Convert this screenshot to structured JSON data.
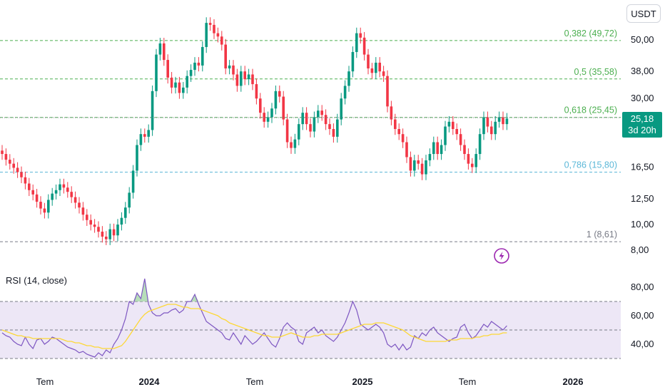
{
  "currency": "USDT",
  "price_tag": {
    "price": "25,18",
    "countdown": "3d 20h",
    "color": "#089981"
  },
  "colors": {
    "up": "#089981",
    "down": "#f23645",
    "fib_green": "#4caf50",
    "fib_blue": "#5cb8d8",
    "fib_gray": "#787b86",
    "rsi_line": "#7e57c2",
    "rsi_ma": "#fdd835",
    "rsi_band": "#ede7f6"
  },
  "icons": [
    "lightning-icon"
  ],
  "chart_data": [
    {
      "type": "candlestick",
      "y_scale": "log",
      "ylim": [
        7.6,
        70
      ],
      "y_ticks": [
        "50,00",
        "38,00",
        "30,00",
        "16,50",
        "12,50",
        "10,00",
        "8,00"
      ],
      "y_tick_values": [
        50,
        38,
        30,
        16.5,
        12.5,
        10,
        8
      ],
      "x_ticks": [
        "Tem",
        "2024",
        "Tem",
        "2025",
        "Tem",
        "2026"
      ],
      "fib_levels": [
        {
          "label": "0,382 (49,72)",
          "value": 49.72
        },
        {
          "label": "0,5 (35,58)",
          "value": 35.58
        },
        {
          "label": "0,618 (25,45)",
          "value": 25.45
        },
        {
          "label": "0,786 (15,80)",
          "value": 15.8
        },
        {
          "label": "1 (8,61)",
          "value": 8.61
        }
      ],
      "last_price": 25.18,
      "closes": [
        18.5,
        17.6,
        17.0,
        16.4,
        15.8,
        15.1,
        14.3,
        13.5,
        13.0,
        12.2,
        11.5,
        11.1,
        12.4,
        13.1,
        13.5,
        14.2,
        13.8,
        13.3,
        12.7,
        12.1,
        11.6,
        10.9,
        10.4,
        10.0,
        9.8,
        9.4,
        9.0,
        8.8,
        9.6,
        9.1,
        10.0,
        10.6,
        11.6,
        13.2,
        16.0,
        20.0,
        22.0,
        21.5,
        22.8,
        32.0,
        44.0,
        48.5,
        42.0,
        36.0,
        33.0,
        34.5,
        31.5,
        33.0,
        36.5,
        38.5,
        41.0,
        40.0,
        47.0,
        58.0,
        57.0,
        53.0,
        51.5,
        48.0,
        39.0,
        40.0,
        37.0,
        33.5,
        38.0,
        35.5,
        37.0,
        34.0,
        30.0,
        26.5,
        24.5,
        25.5,
        27.5,
        32.0,
        30.5,
        25.0,
        20.5,
        19.5,
        21.0,
        24.0,
        26.5,
        24.0,
        22.5,
        25.5,
        27.0,
        26.0,
        24.0,
        23.0,
        21.5,
        25.0,
        30.0,
        33.5,
        38.0,
        45.0,
        53.0,
        51.0,
        44.0,
        39.0,
        37.5,
        41.0,
        38.0,
        36.5,
        28.0,
        25.0,
        23.0,
        22.0,
        20.5,
        18.0,
        16.0,
        17.5,
        17.0,
        15.5,
        17.5,
        18.5,
        20.5,
        18.5,
        20.0,
        23.5,
        24.5,
        23.0,
        22.0,
        20.0,
        18.5,
        17.0,
        16.5,
        18.5,
        22.0,
        25.5,
        23.5,
        22.0,
        24.5,
        25.5,
        24.0,
        25.18
      ]
    },
    {
      "type": "line",
      "title": "RSI (14, close)",
      "ylim": [
        29,
        86
      ],
      "y_ticks": [
        "80,00",
        "60,00",
        "40,00"
      ],
      "y_tick_values": [
        80,
        60,
        40
      ],
      "band": [
        30,
        70
      ],
      "midline": 50,
      "series": [
        {
          "values": [
            48,
            46,
            45,
            42,
            40,
            39,
            45,
            40,
            37,
            43,
            44,
            40,
            42,
            45,
            44,
            42,
            40,
            38,
            37,
            36,
            34,
            35,
            33,
            32,
            31,
            34,
            32,
            36,
            34,
            40,
            44,
            50,
            58,
            70,
            68,
            76,
            72,
            86,
            68,
            62,
            60,
            60,
            62,
            62,
            64,
            65,
            62,
            64,
            70,
            70,
            75,
            68,
            62,
            56,
            54,
            52,
            50,
            48,
            44,
            43,
            48,
            44,
            40,
            46,
            43,
            40,
            42,
            45,
            48,
            44,
            40,
            38,
            44,
            52,
            55,
            52,
            50,
            42,
            40,
            48,
            50,
            52,
            48,
            50,
            46,
            44,
            42,
            45,
            50,
            55,
            62,
            70,
            64,
            54,
            52,
            50,
            52,
            54,
            52,
            48,
            40,
            38,
            40,
            36,
            40,
            36,
            38,
            46,
            44,
            48,
            46,
            50,
            52,
            48,
            46,
            44,
            42,
            44,
            45,
            52,
            54,
            48,
            44,
            46,
            50,
            54,
            52,
            56,
            54,
            52,
            50,
            53
          ]
        },
        {
          "values": [
            50,
            49,
            48,
            47,
            46,
            46,
            45,
            45,
            44,
            44,
            44,
            44,
            44,
            44,
            44,
            44,
            43,
            42,
            42,
            41,
            41,
            40,
            39,
            39,
            38,
            38,
            37,
            37,
            37,
            37,
            38,
            39,
            42,
            46,
            50,
            54,
            58,
            61,
            63,
            64,
            65,
            66,
            67,
            68,
            68,
            68,
            67,
            66,
            66,
            65,
            65,
            65,
            64,
            63,
            62,
            61,
            60,
            58,
            57,
            55,
            54,
            53,
            52,
            51,
            50,
            49,
            48,
            47,
            46,
            46,
            45,
            45,
            45,
            46,
            47,
            48,
            47,
            46,
            45,
            45,
            45,
            46,
            46,
            47,
            47,
            47,
            47,
            47,
            48,
            49,
            50,
            51,
            52,
            53,
            54,
            54,
            54,
            55,
            55,
            55,
            54,
            53,
            52,
            51,
            50,
            48,
            46,
            45,
            44,
            43,
            42,
            42,
            42,
            42,
            42,
            42,
            43,
            43,
            43,
            44,
            44,
            44,
            44,
            45,
            45,
            46,
            46,
            47,
            47,
            47,
            48,
            48
          ]
        }
      ]
    }
  ]
}
